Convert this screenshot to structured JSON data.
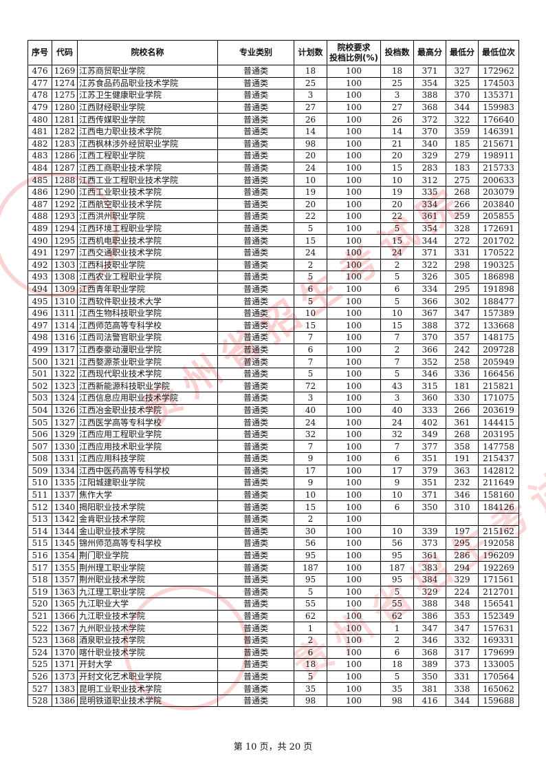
{
  "table": {
    "headers": [
      "序号",
      "代码",
      "院校名称",
      "专业类别",
      "计划数",
      "院校要求投档比例(%)",
      "投档数",
      "最高分",
      "最低分",
      "最低位次"
    ],
    "rows": [
      [
        "476",
        "1269",
        "江苏商贸职业学院",
        "普通类",
        "18",
        "100",
        "18",
        "371",
        "327",
        "172962"
      ],
      [
        "477",
        "1274",
        "江苏食品药品职业技术学院",
        "普通类",
        "25",
        "100",
        "25",
        "354",
        "325",
        "174503"
      ],
      [
        "478",
        "1275",
        "江苏卫生健康职业学院",
        "普通类",
        "3",
        "100",
        "3",
        "388",
        "370",
        "135371"
      ],
      [
        "479",
        "1280",
        "江西财经职业学院",
        "普通类",
        "27",
        "100",
        "27",
        "368",
        "344",
        "159983"
      ],
      [
        "480",
        "1281",
        "江西传媒职业学院",
        "普通类",
        "26",
        "100",
        "26",
        "372",
        "322",
        "176640"
      ],
      [
        "481",
        "1282",
        "江西电力职业技术学院",
        "普通类",
        "14",
        "100",
        "14",
        "370",
        "359",
        "146391"
      ],
      [
        "482",
        "1283",
        "江西枫林涉外经贸职业学院",
        "普通类",
        "98",
        "100",
        "21",
        "340",
        "185",
        "215671"
      ],
      [
        "483",
        "1286",
        "江西工程职业学院",
        "普通类",
        "20",
        "100",
        "20",
        "329",
        "279",
        "198911"
      ],
      [
        "484",
        "1287",
        "江西工商职业技术学院",
        "普通类",
        "24",
        "100",
        "15",
        "283",
        "183",
        "215733"
      ],
      [
        "485",
        "1288",
        "江西工业工程职业技术学院",
        "普通类",
        "10",
        "100",
        "10",
        "312",
        "275",
        "200633"
      ],
      [
        "486",
        "1290",
        "江西工业职业技术学院",
        "普通类",
        "19",
        "100",
        "19",
        "335",
        "268",
        "203079"
      ],
      [
        "487",
        "1292",
        "江西航空职业技术学院",
        "普通类",
        "20",
        "100",
        "20",
        "334",
        "266",
        "203840"
      ],
      [
        "488",
        "1293",
        "江西洪州职业学院",
        "普通类",
        "22",
        "100",
        "22",
        "361",
        "259",
        "205855"
      ],
      [
        "489",
        "1294",
        "江西环境工程职业学院",
        "普通类",
        "5",
        "100",
        "5",
        "354",
        "328",
        "172691"
      ],
      [
        "490",
        "1295",
        "江西机电职业技术学院",
        "普通类",
        "15",
        "100",
        "15",
        "344",
        "272",
        "201702"
      ],
      [
        "491",
        "1297",
        "江西交通职业技术学院",
        "普通类",
        "24",
        "100",
        "24",
        "371",
        "331",
        "170522"
      ],
      [
        "492",
        "1303",
        "江西科技职业学院",
        "普通类",
        "2",
        "100",
        "2",
        "322",
        "298",
        "190325"
      ],
      [
        "493",
        "1308",
        "江西农业工程职业学院",
        "普通类",
        "5",
        "100",
        "5",
        "326",
        "305",
        "186898"
      ],
      [
        "494",
        "1309",
        "江西青年职业学院",
        "普通类",
        "6",
        "100",
        "6",
        "334",
        "295",
        "191898"
      ],
      [
        "495",
        "1310",
        "江西软件职业技术大学",
        "普通类",
        "5",
        "100",
        "5",
        "366",
        "302",
        "188477"
      ],
      [
        "496",
        "1311",
        "江西生物科技职业学院",
        "普通类",
        "10",
        "100",
        "10",
        "367",
        "347",
        "157389"
      ],
      [
        "497",
        "1314",
        "江西师范高等专科学校",
        "普通类",
        "15",
        "100",
        "15",
        "388",
        "372",
        "133668"
      ],
      [
        "498",
        "1316",
        "江西司法警官职业学院",
        "普通类",
        "7",
        "100",
        "7",
        "370",
        "357",
        "148175"
      ],
      [
        "499",
        "1317",
        "江西泰豪动漫职业学院",
        "普通类",
        "6",
        "100",
        "2",
        "366",
        "242",
        "209728"
      ],
      [
        "500",
        "1321",
        "江西婺源茶业职业学院",
        "普通类",
        "7",
        "100",
        "7",
        "352",
        "258",
        "205949"
      ],
      [
        "501",
        "1322",
        "江西现代职业技术学院",
        "普通类",
        "5",
        "100",
        "5",
        "346",
        "336",
        "166456"
      ],
      [
        "502",
        "1323",
        "江西新能源科技职业学院",
        "普通类",
        "72",
        "100",
        "43",
        "315",
        "181",
        "215821"
      ],
      [
        "503",
        "1324",
        "江西信息应用职业技术学院",
        "普通类",
        "3",
        "100",
        "3",
        "360",
        "330",
        "171075"
      ],
      [
        "504",
        "1326",
        "江西冶金职业技术学院",
        "普通类",
        "40",
        "100",
        "40",
        "333",
        "266",
        "203619"
      ],
      [
        "505",
        "1327",
        "江西医学高等专科学校",
        "普通类",
        "24",
        "100",
        "24",
        "402",
        "361",
        "144415"
      ],
      [
        "506",
        "1329",
        "江西应用工程职业学院",
        "普通类",
        "32",
        "100",
        "32",
        "349",
        "268",
        "203195"
      ],
      [
        "507",
        "1330",
        "江西应用技术职业学院",
        "普通类",
        "7",
        "100",
        "7",
        "377",
        "358",
        "147758"
      ],
      [
        "508",
        "1331",
        "江西应用科技学院",
        "普通类",
        "9",
        "100",
        "6",
        "351",
        "191",
        "215437"
      ],
      [
        "509",
        "1334",
        "江西中医药高等专科学校",
        "普通类",
        "17",
        "100",
        "17",
        "379",
        "363",
        "142812"
      ],
      [
        "510",
        "1335",
        "江阳城建职业学院",
        "普通类",
        "9",
        "100",
        "9",
        "351",
        "232",
        "211649"
      ],
      [
        "511",
        "1337",
        "焦作大学",
        "普通类",
        "10",
        "100",
        "10",
        "371",
        "346",
        "158160"
      ],
      [
        "512",
        "1340",
        "揭阳职业技术学院",
        "普通类",
        "15",
        "100",
        "6",
        "350",
        "310",
        "184126"
      ],
      [
        "513",
        "1342",
        "金肯职业技术学院",
        "普通类",
        "2",
        "100",
        "",
        "",
        "",
        ""
      ],
      [
        "514",
        "1344",
        "金山职业技术学院",
        "普通类",
        "30",
        "100",
        "10",
        "339",
        "197",
        "215162"
      ],
      [
        "515",
        "1345",
        "锦州师范高等专科学校",
        "普通类",
        "56",
        "100",
        "56",
        "373",
        "295",
        "192058"
      ],
      [
        "516",
        "1354",
        "荆门职业学院",
        "普通类",
        "95",
        "100",
        "95",
        "361",
        "286",
        "196209"
      ],
      [
        "517",
        "1355",
        "荆州理工职业学院",
        "普通类",
        "187",
        "100",
        "187",
        "383",
        "294",
        "192269"
      ],
      [
        "518",
        "1357",
        "荆州职业技术学院",
        "普通类",
        "95",
        "100",
        "95",
        "384",
        "329",
        "171561"
      ],
      [
        "519",
        "1363",
        "九江理工职业学院",
        "普通类",
        "5",
        "100",
        "5",
        "329",
        "224",
        "212701"
      ],
      [
        "520",
        "1365",
        "九江职业大学",
        "普通类",
        "55",
        "100",
        "55",
        "388",
        "348",
        "156541"
      ],
      [
        "521",
        "1366",
        "九江职业技术学院",
        "普通类",
        "62",
        "100",
        "62",
        "386",
        "353",
        "152349"
      ],
      [
        "522",
        "1367",
        "九州职业技术学院",
        "普通类",
        "1",
        "100",
        "1",
        "347",
        "347",
        "157631"
      ],
      [
        "523",
        "1368",
        "酒泉职业技术学院",
        "普通类",
        "2",
        "100",
        "2",
        "346",
        "332",
        "169331"
      ],
      [
        "524",
        "1370",
        "喀什职业技术学院",
        "普通类",
        "6",
        "100",
        "6",
        "368",
        "317",
        "179699"
      ],
      [
        "525",
        "1371",
        "开封大学",
        "普通类",
        "18",
        "100",
        "18",
        "389",
        "373",
        "133005"
      ],
      [
        "526",
        "1373",
        "开封文化艺术职业学院",
        "普通类",
        "5",
        "100",
        "5",
        "350",
        "331",
        "170564"
      ],
      [
        "527",
        "1383",
        "昆明工业职业技术学院",
        "普通类",
        "35",
        "100",
        "35",
        "381",
        "338",
        "165062"
      ],
      [
        "528",
        "1386",
        "昆明铁道职业技术学院",
        "普通类",
        "98",
        "100",
        "98",
        "416",
        "344",
        "159688"
      ]
    ]
  },
  "watermark": {
    "text": "贵州省招生考试院",
    "color": "#e62828"
  },
  "footer": {
    "page_label": "第 10 页，共 20 页"
  }
}
